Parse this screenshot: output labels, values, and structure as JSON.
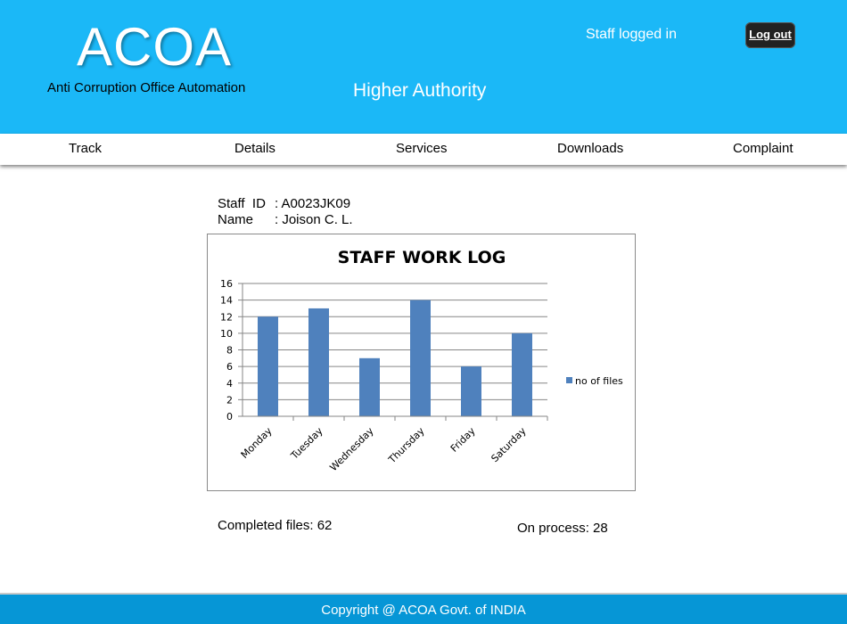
{
  "header": {
    "logo": "ACOA",
    "tagline": "Anti Corruption Office Automation",
    "role": "Higher Authority",
    "status": "Staff logged in",
    "logout_label": "Log out",
    "background": "#1bb8f7"
  },
  "nav": {
    "items": [
      {
        "label": "Track"
      },
      {
        "label": "Details"
      },
      {
        "label": "Services"
      },
      {
        "label": "Downloads"
      },
      {
        "label": "Complaint"
      }
    ]
  },
  "staff": {
    "id_label": "Staff  ID",
    "id_value": ": A0023JK09",
    "name_label": "Name",
    "name_value": ": Joison C. L."
  },
  "chart_data": {
    "type": "bar",
    "title": "STAFF WORK LOG",
    "categories": [
      "Monday",
      "Tuesday",
      "Wednesday",
      "Thursday",
      "Friday",
      "Saturday"
    ],
    "series": [
      {
        "name": "no of files",
        "values": [
          12,
          13,
          7,
          14,
          6,
          10
        ],
        "color": "#4f81bd"
      }
    ],
    "ylim": [
      0,
      16
    ],
    "yticks": [
      0,
      2,
      4,
      6,
      8,
      10,
      12,
      14,
      16
    ],
    "grid": true,
    "legend": "right"
  },
  "stats": {
    "completed": "Completed files: 62",
    "on_process": "On process: 28"
  },
  "footer": {
    "text": "Copyright @ ACOA Govt. of INDIA",
    "background": "#0696d6"
  }
}
